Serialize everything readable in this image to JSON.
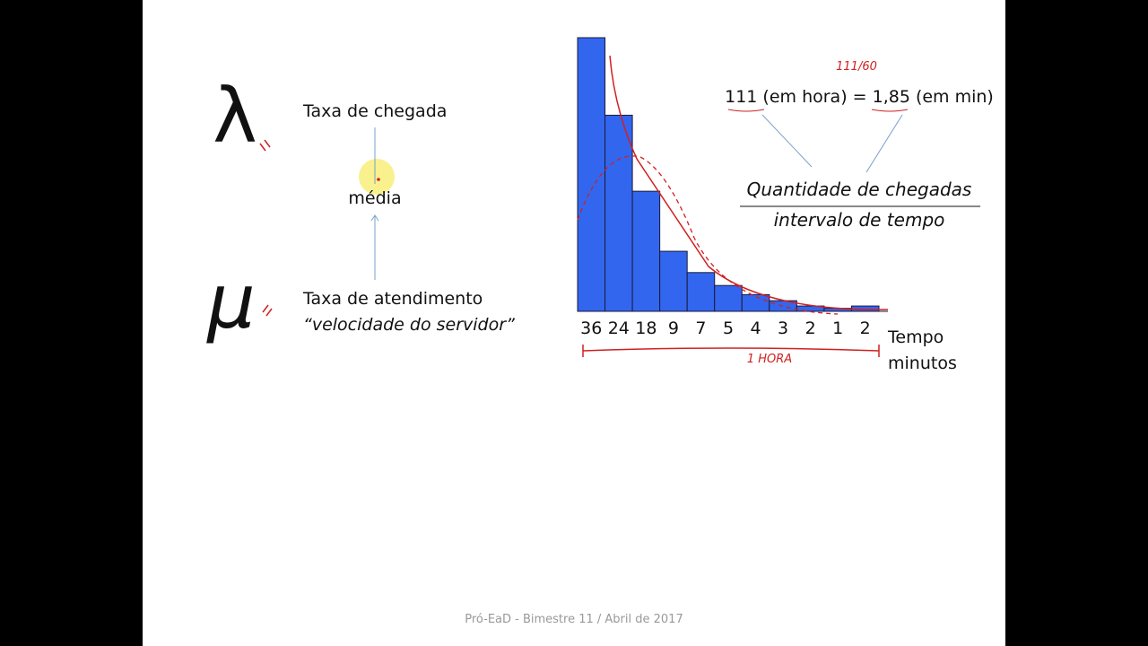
{
  "slide": {
    "lambda": "λ",
    "mu": "μ",
    "arrival_rate": "Taxa de chegada",
    "mean": "média",
    "service_rate": "Taxa de atendimento",
    "server_speed": "“velocidade do servidor”",
    "rate_note": "111 (em hora) = 1,85 (em min)",
    "fraction_numerator": "Quantidade de chegadas",
    "fraction_denominator": "intervalo de tempo",
    "x_label": [
      "Tempo",
      "minutos"
    ],
    "handwritten": [
      "111/60",
      "1 HORA"
    ],
    "footer": "Pró-EaD - Bimestre 11 / Abril de 2017"
  },
  "chart_data": {
    "type": "bar",
    "categories": [
      "36",
      "24",
      "18",
      "9",
      "7",
      "5",
      "4",
      "3",
      "2",
      "1",
      "2"
    ],
    "values": [
      36,
      25.8,
      15.8,
      7.9,
      5.1,
      3.4,
      2.2,
      1.4,
      0.7,
      0.4,
      0.7
    ],
    "ylim": [
      0,
      36
    ],
    "color": "#3366ee"
  }
}
